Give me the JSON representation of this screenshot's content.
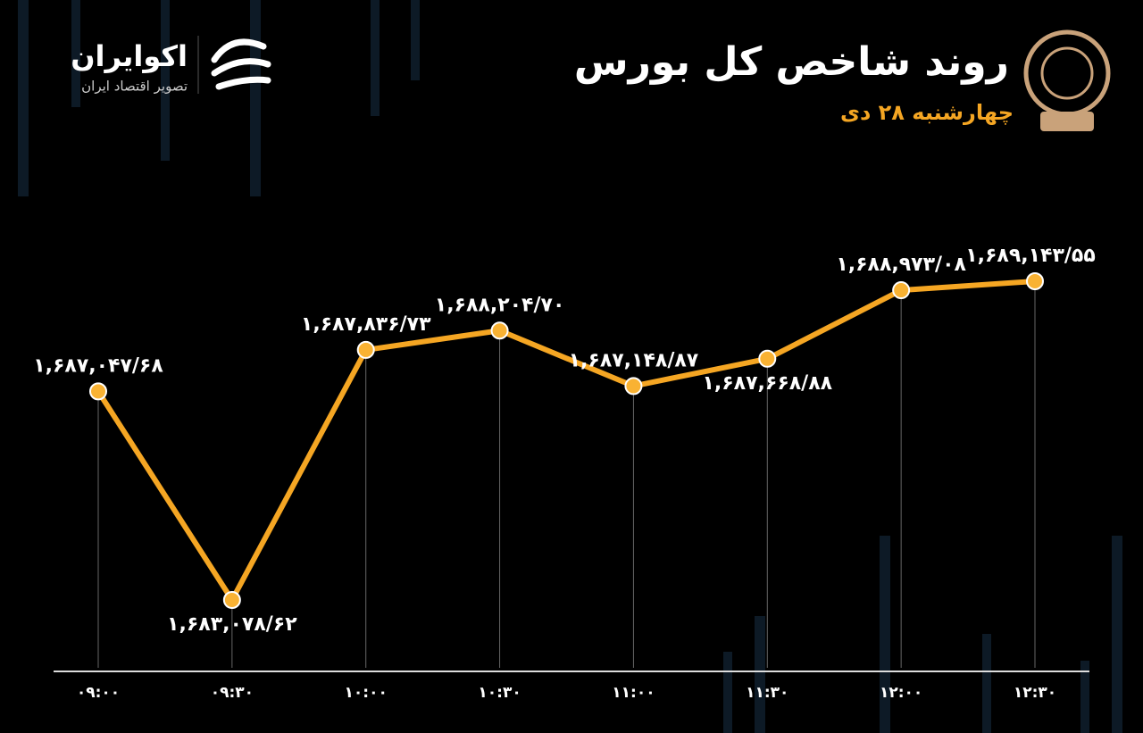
{
  "header": {
    "brand": "اکوایران",
    "tagline": "تصویر اقتصاد ایران"
  },
  "chart_data": {
    "type": "line",
    "title": "روند شاخص کل بورس",
    "subtitle": "چهارشنبه ۲۸ دی",
    "categories": [
      "۰۹:۰۰",
      "۰۹:۳۰",
      "۱۰:۰۰",
      "۱۰:۳۰",
      "۱۱:۰۰",
      "۱۱:۳۰",
      "۱۲:۰۰",
      "۱۲:۳۰"
    ],
    "series": [
      {
        "name": "شاخص کل",
        "color": "#f5a623",
        "values": [
          1687047.68,
          1683078.62,
          1687836.73,
          1688204.7,
          1687148.87,
          1687668.88,
          1688973.08,
          1689143.55
        ],
        "value_labels": [
          "۱,۶۸۷,۰۴۷/۶۸",
          "۱,۶۸۳,۰۷۸/۶۲",
          "۱,۶۸۷,۸۳۶/۷۳",
          "۱,۶۸۸,۲۰۴/۷۰",
          "۱,۶۸۷,۱۴۸/۸۷",
          "۱,۶۸۷,۶۶۸/۸۸",
          "۱,۶۸۸,۹۷۳/۰۸",
          "۱,۶۸۹,۱۴۳/۵۵"
        ]
      }
    ]
  }
}
